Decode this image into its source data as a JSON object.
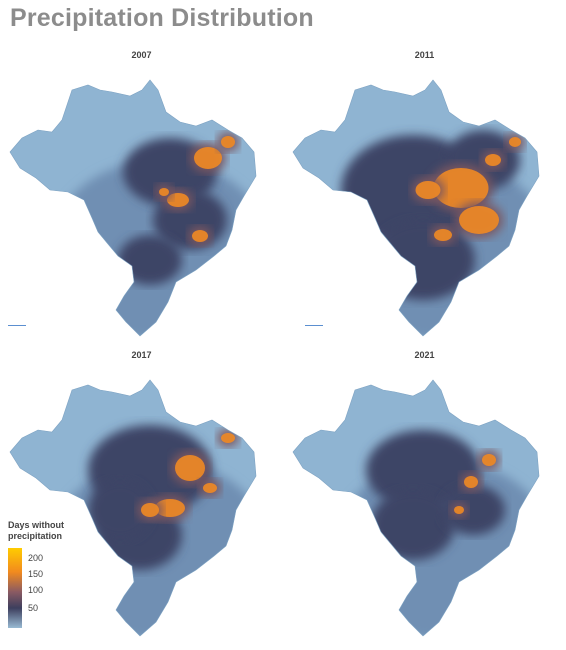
{
  "title": "Precipitation Distribution",
  "panels": [
    {
      "year": "2007"
    },
    {
      "year": "2011"
    },
    {
      "year": "2017"
    },
    {
      "year": "2021"
    }
  ],
  "legend": {
    "title_line1": "Days without",
    "title_line2": "precipitation",
    "ticks": [
      "200",
      "150",
      "100",
      "50"
    ]
  },
  "colors": {
    "light": "#8fb4d2",
    "mid_blue": "#6f8fb3",
    "dark": "#3e4466",
    "brown": "#7a5660",
    "orange": "#ef8a23",
    "yellow": "#ffcc00"
  }
}
